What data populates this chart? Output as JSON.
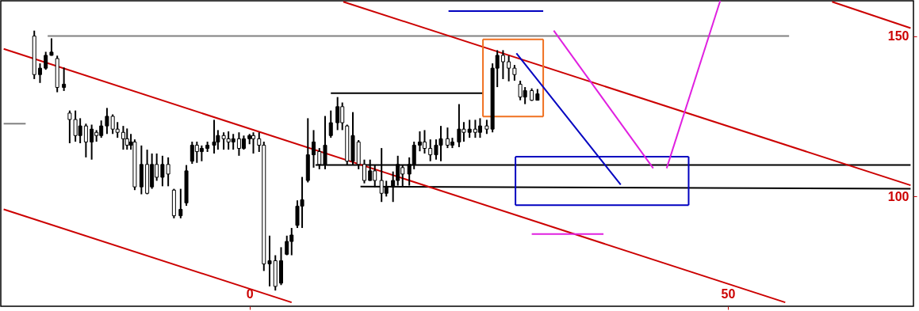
{
  "chart_data": {
    "type": "candlestick",
    "color": "#000000",
    "xlim": [
      -26,
      69.4
    ],
    "ylim": [
      65.8,
      161
    ],
    "xticks": [
      0,
      50
    ],
    "yticks": [
      100,
      150
    ],
    "grid": false,
    "x": [
      -22.5,
      -21.9,
      -21.3,
      -20.7,
      -20.1,
      -19.4,
      -18.8,
      -18.2,
      -17.7,
      -17.1,
      -16.5,
      -16.0,
      -15.5,
      -14.9,
      -14.3,
      -13.8,
      -13.2,
      -12.8,
      -12.4,
      -12.0,
      -11.3,
      -10.7,
      -10.2,
      -9.7,
      -9.1,
      -8.5,
      -7.9,
      -7.2,
      -6.6,
      -6.0,
      -5.5,
      -5.0,
      -4.4,
      -3.7,
      -3.3,
      -2.7,
      -2.2,
      -1.7,
      -1.1,
      -0.6,
      0,
      0.4,
      1.0,
      1.5,
      2.1,
      2.7,
      3.3,
      3.9,
      4.4,
      5.0,
      5.5,
      6.1,
      6.7,
      7.3,
      7.9,
      8.5,
      9.2,
      9.7,
      10.2,
      10.8,
      11.4,
      12.0,
      12.6,
      13.1,
      13.8,
      14.3,
      15.0,
      15.5,
      16.0,
      16.7,
      17.2,
      17.8,
      18.3,
      18.9,
      19.5,
      20.0,
      20.7,
      21.2,
      21.9,
      22.4,
      23.0,
      23.6,
      24.1,
      24.8,
      25.4,
      25.9,
      26.5,
      27.1,
      27.7,
      28.3,
      28.8,
      29.5,
      30.1
    ],
    "ohlc": [
      [
        150,
        151.7,
        136.6,
        138
      ],
      [
        138,
        141.5,
        135.4,
        140
      ],
      [
        140,
        145.1,
        139.5,
        144
      ],
      [
        144,
        149.3,
        143.9,
        145
      ],
      [
        143,
        143.9,
        132.5,
        134
      ],
      [
        134,
        140.2,
        132.9,
        135
      ],
      [
        126,
        126.8,
        116.6,
        124
      ],
      [
        124,
        126.8,
        117.1,
        119
      ],
      [
        119,
        124.4,
        116.6,
        122
      ],
      [
        122,
        122.7,
        112.2,
        117
      ],
      [
        117,
        122.4,
        111.5,
        121
      ],
      [
        120,
        120.7,
        117.1,
        119
      ],
      [
        119,
        123.7,
        118.3,
        122
      ],
      [
        122,
        127.6,
        119.5,
        125
      ],
      [
        125,
        125.6,
        119.5,
        121
      ],
      [
        121,
        123.2,
        118.3,
        120
      ],
      [
        120,
        122.0,
        114.6,
        118
      ],
      [
        118,
        121.2,
        114.6,
        116
      ],
      [
        116,
        119.5,
        114.6,
        117
      ],
      [
        117,
        117.8,
        102.0,
        103
      ],
      [
        103,
        115.9,
        100.7,
        110
      ],
      [
        110,
        114.6,
        100.7,
        101
      ],
      [
        103,
        113.4,
        102.4,
        110
      ],
      [
        110,
        113.4,
        104.9,
        106
      ],
      [
        106,
        112.7,
        103.2,
        110
      ],
      [
        110,
        112.2,
        103.2,
        107
      ],
      [
        102,
        102.4,
        93.2,
        94
      ],
      [
        94,
        102.4,
        93.2,
        96
      ],
      [
        98,
        109.8,
        97.1,
        108
      ],
      [
        111,
        117.1,
        110.2,
        116
      ],
      [
        116,
        117.1,
        110.5,
        114
      ],
      [
        114,
        115.9,
        111.0,
        115
      ],
      [
        115,
        117.1,
        113.9,
        116
      ],
      [
        116,
        123.9,
        113.4,
        117
      ],
      [
        117,
        120.7,
        114.6,
        119
      ],
      [
        119,
        120.0,
        114.6,
        118
      ],
      [
        118,
        120.3,
        114.6,
        117
      ],
      [
        117,
        119.5,
        114.6,
        118
      ],
      [
        118,
        120.0,
        112.7,
        115
      ],
      [
        115,
        119.0,
        114.6,
        118
      ],
      [
        118,
        119.5,
        116.3,
        119
      ],
      [
        119,
        120.0,
        113.4,
        118
      ],
      [
        118,
        120.0,
        113.9,
        116
      ],
      [
        116,
        117.1,
        76.8,
        79
      ],
      [
        79,
        87.8,
        72.0,
        80
      ],
      [
        80,
        81.7,
        70.7,
        72
      ],
      [
        73,
        84.2,
        72.4,
        80
      ],
      [
        82,
        87.8,
        81.7,
        86
      ],
      [
        86,
        90.2,
        81.7,
        88
      ],
      [
        91,
        98.8,
        90.2,
        97
      ],
      [
        97,
        106.1,
        90.2,
        99
      ],
      [
        105,
        124.4,
        104.4,
        113
      ],
      [
        113,
        120.7,
        109.0,
        117
      ],
      [
        114,
        115.1,
        108.5,
        110
      ],
      [
        110,
        125.1,
        108.5,
        116
      ],
      [
        119,
        126.8,
        118.3,
        123
      ],
      [
        123,
        131.0,
        120.7,
        128
      ],
      [
        128,
        129.3,
        120.7,
        123
      ],
      [
        122,
        122.4,
        109.8,
        111
      ],
      [
        111,
        126.3,
        109.8,
        119
      ],
      [
        117,
        117.6,
        108.5,
        110
      ],
      [
        110,
        111.5,
        104.1,
        105
      ],
      [
        105,
        111.5,
        104.9,
        108
      ],
      [
        108,
        109.8,
        102.9,
        105
      ],
      [
        105,
        115.1,
        98.3,
        101
      ],
      [
        101,
        104.9,
        100.0,
        103
      ],
      [
        103,
        107.8,
        98.3,
        105
      ],
      [
        105,
        112.7,
        103.4,
        110
      ],
      [
        109,
        109.8,
        103.2,
        107
      ],
      [
        107,
        112.2,
        103.4,
        110
      ],
      [
        110,
        117.1,
        108.5,
        116
      ],
      [
        116,
        120.3,
        114.1,
        117
      ],
      [
        117,
        120.7,
        113.4,
        115
      ],
      [
        115,
        117.8,
        111.0,
        113
      ],
      [
        113,
        117.8,
        111.5,
        116
      ],
      [
        116,
        122.0,
        111.0,
        118
      ],
      [
        118,
        121.5,
        115.1,
        116
      ],
      [
        116,
        118.3,
        115.1,
        117
      ],
      [
        117,
        128.8,
        115.4,
        121
      ],
      [
        121,
        123.2,
        117.1,
        120
      ],
      [
        120,
        123.9,
        118.3,
        121
      ],
      [
        121,
        123.9,
        118.3,
        120
      ],
      [
        120,
        124.4,
        118.3,
        122
      ],
      [
        122,
        123.9,
        119.5,
        121
      ],
      [
        121,
        141.5,
        120.0,
        140
      ],
      [
        140,
        145.6,
        134.1,
        144
      ],
      [
        144,
        145.6,
        136.6,
        142
      ],
      [
        142,
        143.9,
        135.9,
        140
      ],
      [
        140,
        141.0,
        136.1,
        138
      ],
      [
        135,
        136.1,
        130.0,
        131
      ],
      [
        131,
        134.1,
        128.8,
        133
      ],
      [
        133,
        133.7,
        129.8,
        130
      ],
      [
        130,
        133.5,
        130.0,
        132
      ]
    ],
    "series": [
      {
        "type": "line",
        "color": "#808080",
        "x": [
          -21.1,
          56.4
        ],
        "values": [
          150,
          150
        ]
      },
      {
        "type": "line",
        "color": "#808080",
        "x": [
          -25.7,
          -23.4
        ],
        "values": [
          122.7,
          122.7
        ]
      },
      {
        "type": "line",
        "color": "#000000",
        "x": [
          8.5,
          24.4
        ],
        "values": [
          132.2,
          132.2
        ]
      },
      {
        "type": "line",
        "color": "#000000",
        "x": [
          6.9,
          69.1
        ],
        "values": [
          109.8,
          109.8
        ]
      },
      {
        "type": "line",
        "color": "#000000",
        "x": [
          11.6,
          69.1
        ],
        "values": [
          103.1,
          102.4
        ]
      },
      {
        "type": "line",
        "color": "#cc0000",
        "x": [
          -25.7,
          56.0
        ],
        "values": [
          146.0,
          67.0
        ]
      },
      {
        "type": "line",
        "color": "#cc0000",
        "x": [
          -25.7,
          4.4
        ],
        "values": [
          96.0,
          67.0
        ]
      },
      {
        "type": "line",
        "color": "#cc0000",
        "x": [
          9.8,
          69.1
        ],
        "values": [
          160.7,
          103.5
        ]
      },
      {
        "type": "line",
        "color": "#cc0000",
        "x": [
          60.9,
          69.1
        ],
        "values": [
          160.7,
          152.5
        ]
      },
      {
        "type": "line",
        "color": "#0000c0",
        "x": [
          20.8,
          30.7
        ],
        "values": [
          157.8,
          157.8
        ]
      },
      {
        "type": "line",
        "color": "#f07020",
        "x": [
          24.4,
          30.7
        ],
        "values": [
          149.0,
          149.0
        ]
      },
      {
        "type": "line",
        "color": "#f07020",
        "x": [
          24.4,
          30.7
        ],
        "values": [
          124.9,
          124.9
        ]
      },
      {
        "type": "line",
        "color": "#f07020",
        "x": [
          24.4,
          24.4
        ],
        "values": [
          149.0,
          124.9
        ]
      },
      {
        "type": "line",
        "color": "#f07020",
        "x": [
          30.7,
          30.7
        ],
        "values": [
          149.0,
          124.9
        ]
      },
      {
        "type": "line",
        "color": "#0000c0",
        "x": [
          27.9,
          38.8
        ],
        "values": [
          144.6,
          103.7
        ]
      },
      {
        "type": "line",
        "color": "#0000c0",
        "x": [
          27.8,
          45.9
        ],
        "values": [
          112.4,
          112.4
        ]
      },
      {
        "type": "line",
        "color": "#0000c0",
        "x": [
          27.8,
          45.9
        ],
        "values": [
          97.3,
          97.3
        ]
      },
      {
        "type": "line",
        "color": "#0000c0",
        "x": [
          27.8,
          27.8
        ],
        "values": [
          112.4,
          97.3
        ]
      },
      {
        "type": "line",
        "color": "#0000c0",
        "x": [
          45.9,
          45.9
        ],
        "values": [
          112.4,
          97.3
        ]
      },
      {
        "type": "line",
        "color": "#e020e0",
        "x": [
          31.8,
          42.2
        ],
        "values": [
          151.7,
          108.8
        ]
      },
      {
        "type": "line",
        "color": "#e020e0",
        "x": [
          43.6,
          49.2
        ],
        "values": [
          108.8,
          161
        ]
      },
      {
        "type": "line",
        "color": "#e020e0",
        "x": [
          29.5,
          37.0
        ],
        "values": [
          88.3,
          88.3
        ]
      }
    ]
  }
}
